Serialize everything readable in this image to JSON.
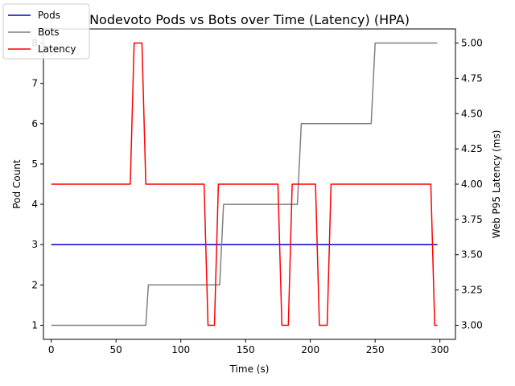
{
  "chart_data": {
    "type": "line",
    "title": "Nodevoto Pods vs Bots over Time (Latency)  (HPA)",
    "xlabel": "Time (s)",
    "ylabel_left": "Pod Count",
    "ylabel_right": "Web P95 Latency (ms)",
    "xlim": [
      -6,
      312
    ],
    "ylim_left": [
      0.65,
      8.35
    ],
    "ylim_right": [
      2.9,
      5.1
    ],
    "x_ticks": [
      0,
      50,
      100,
      150,
      200,
      250,
      300
    ],
    "y_ticks_left": [
      1,
      2,
      3,
      4,
      5,
      6,
      7,
      8
    ],
    "y_ticks_right": [
      3.0,
      3.25,
      3.5,
      3.75,
      4.0,
      4.25,
      4.5,
      4.75,
      5.0
    ],
    "legend_position": "top-left",
    "series": [
      {
        "name": "Pods",
        "color": "#0000cc",
        "axis": "left",
        "points": [
          [
            0,
            3
          ],
          [
            298,
            3
          ]
        ]
      },
      {
        "name": "Bots",
        "color": "#808080",
        "axis": "left",
        "points": [
          [
            0,
            1
          ],
          [
            73,
            1
          ],
          [
            75,
            2
          ],
          [
            130,
            2
          ],
          [
            133,
            4
          ],
          [
            190,
            4
          ],
          [
            193,
            6
          ],
          [
            247,
            6
          ],
          [
            250,
            8
          ],
          [
            298,
            8
          ]
        ]
      },
      {
        "name": "Latency",
        "color": "#ff0000",
        "axis": "right",
        "points": [
          [
            0,
            4
          ],
          [
            61,
            4
          ],
          [
            64,
            5
          ],
          [
            70,
            5
          ],
          [
            73,
            4
          ],
          [
            118,
            4
          ],
          [
            121,
            3
          ],
          [
            126,
            3
          ],
          [
            129,
            4
          ],
          [
            175,
            4
          ],
          [
            178,
            3
          ],
          [
            183,
            3
          ],
          [
            186,
            4
          ],
          [
            204,
            4
          ],
          [
            207,
            3
          ],
          [
            213,
            3
          ],
          [
            216,
            4
          ],
          [
            293,
            4
          ],
          [
            296,
            3
          ],
          [
            298,
            3
          ]
        ]
      }
    ]
  }
}
